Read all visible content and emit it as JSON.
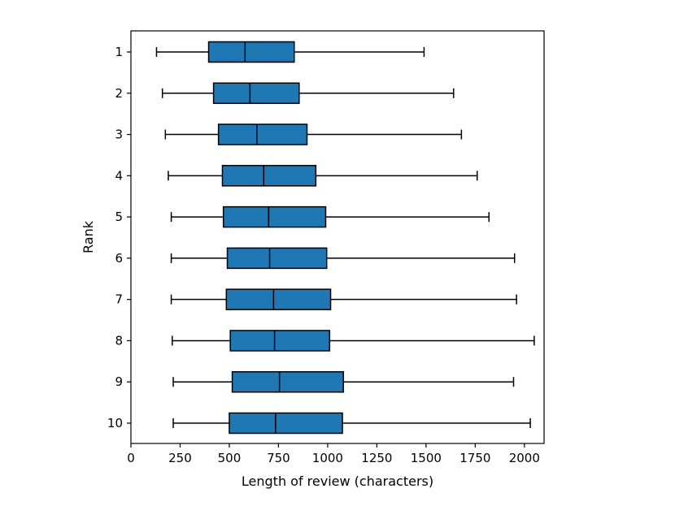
{
  "chart_data": {
    "type": "boxplot",
    "orientation": "horizontal",
    "title": "",
    "xlabel": "Length of review (characters)",
    "ylabel": "Rank",
    "xlim": [
      0,
      2100
    ],
    "xticks": [
      0,
      250,
      500,
      750,
      1000,
      1250,
      1500,
      1750,
      2000
    ],
    "grid": false,
    "box_color": "#1f77b4",
    "categories": [
      "1",
      "2",
      "3",
      "4",
      "5",
      "6",
      "7",
      "8",
      "9",
      "10"
    ],
    "boxes": [
      {
        "rank": "1",
        "whisker_low": 130,
        "q1": 395,
        "median": 580,
        "q3": 830,
        "whisker_high": 1490
      },
      {
        "rank": "2",
        "whisker_low": 160,
        "q1": 420,
        "median": 605,
        "q3": 855,
        "whisker_high": 1640
      },
      {
        "rank": "3",
        "whisker_low": 175,
        "q1": 445,
        "median": 640,
        "q3": 895,
        "whisker_high": 1680
      },
      {
        "rank": "4",
        "whisker_low": 190,
        "q1": 465,
        "median": 675,
        "q3": 940,
        "whisker_high": 1760
      },
      {
        "rank": "5",
        "whisker_low": 205,
        "q1": 470,
        "median": 700,
        "q3": 990,
        "whisker_high": 1820
      },
      {
        "rank": "6",
        "whisker_low": 205,
        "q1": 490,
        "median": 705,
        "q3": 995,
        "whisker_high": 1950
      },
      {
        "rank": "7",
        "whisker_low": 205,
        "q1": 485,
        "median": 725,
        "q3": 1015,
        "whisker_high": 1960
      },
      {
        "rank": "8",
        "whisker_low": 210,
        "q1": 505,
        "median": 730,
        "q3": 1010,
        "whisker_high": 2050
      },
      {
        "rank": "9",
        "whisker_low": 215,
        "q1": 515,
        "median": 755,
        "q3": 1080,
        "whisker_high": 1945
      },
      {
        "rank": "10",
        "whisker_low": 215,
        "q1": 500,
        "median": 735,
        "q3": 1075,
        "whisker_high": 2030
      }
    ]
  }
}
